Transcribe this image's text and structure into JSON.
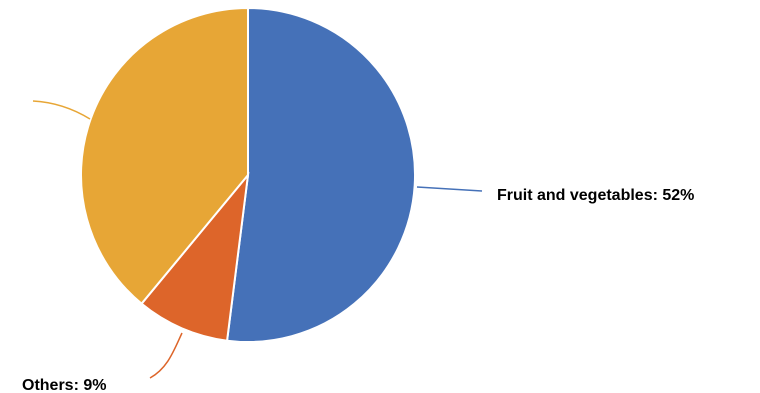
{
  "chart_data": {
    "type": "pie",
    "slices": [
      {
        "label": "Fruit and vegetables",
        "value": 52,
        "color": "#4571B8"
      },
      {
        "label": "Others",
        "value": 9,
        "color": "#DD652A"
      },
      {
        "label": "",
        "value": 39,
        "color": "#E7A636"
      }
    ],
    "labels": {
      "fruit": "Fruit and vegetables: 52%",
      "others": "Others: 9%"
    },
    "legend": "none"
  }
}
